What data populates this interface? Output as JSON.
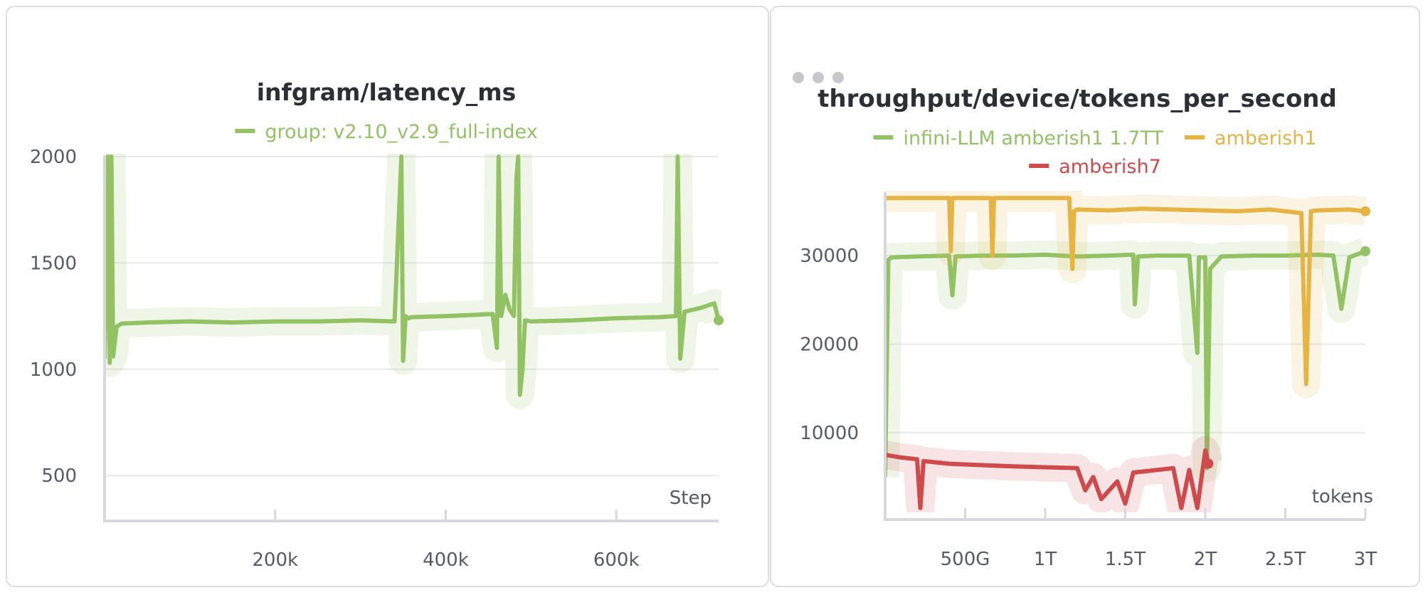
{
  "chart_data": [
    {
      "type": "line",
      "title": "infgram/latency_ms",
      "xlabel": "Step",
      "ylabel": "",
      "xlim": [
        0,
        720000
      ],
      "ylim": [
        320,
        2000
      ],
      "xticks": [
        200000,
        400000,
        600000
      ],
      "xtick_labels": [
        "200k",
        "400k",
        "600k"
      ],
      "yticks": [
        500,
        1000,
        1500,
        2000
      ],
      "ytick_labels": [
        "500",
        "1000",
        "1500",
        "2000"
      ],
      "grid": true,
      "legend_position": "top-center",
      "series": [
        {
          "name": "group: v2.10_v2.9_full-index",
          "color": "#92c264",
          "x": [
            0,
            4000,
            6000,
            8000,
            10000,
            14000,
            20000,
            50000,
            100000,
            150000,
            200000,
            250000,
            300000,
            340000,
            348000,
            350000,
            353000,
            356000,
            360000,
            400000,
            430000,
            455000,
            460000,
            462000,
            465000,
            470000,
            475000,
            480000,
            483000,
            485000,
            487000,
            490000,
            493000,
            500000,
            550000,
            600000,
            650000,
            670000,
            672000,
            675000,
            680000,
            700000,
            715000,
            720000
          ],
          "values": [
            1050,
            2000,
            1030,
            2000,
            1060,
            1200,
            1215,
            1220,
            1225,
            1220,
            1225,
            1225,
            1230,
            1225,
            2000,
            1040,
            1250,
            1240,
            1245,
            1250,
            1255,
            1260,
            1100,
            2000,
            1250,
            1350,
            1280,
            1250,
            1900,
            2000,
            880,
            1000,
            1230,
            1225,
            1230,
            1240,
            1245,
            1250,
            2000,
            1050,
            1270,
            1290,
            1310,
            1230
          ]
        }
      ]
    },
    {
      "type": "line",
      "title": "throughput/device/tokens_per_second",
      "xlabel": "tokens",
      "ylabel": "",
      "xlim": [
        0,
        3000000000000
      ],
      "ylim": [
        1000,
        37000
      ],
      "xticks": [
        500000000000,
        1000000000000,
        1500000000000,
        2000000000000,
        2500000000000,
        3000000000000
      ],
      "xtick_labels": [
        "500G",
        "1T",
        "1.5T",
        "2T",
        "2.5T",
        "3T"
      ],
      "yticks": [
        10000,
        20000,
        30000
      ],
      "ytick_labels": [
        "10000",
        "20000",
        "30000"
      ],
      "grid": true,
      "legend_position": "top-center",
      "series": [
        {
          "name": "infini-LLM amberish1 1.7TT",
          "color": "#92c264",
          "x": [
            0,
            20000000000,
            40000000000,
            200000000000,
            400000000000,
            420000000000,
            440000000000,
            600000000000,
            800000000000,
            1000000000000,
            1200000000000,
            1400000000000,
            1550000000000,
            1560000000000,
            1580000000000,
            1700000000000,
            1900000000000,
            1950000000000,
            1960000000000,
            2000000000000,
            2010000000000,
            2030000000000,
            2100000000000,
            2300000000000,
            2500000000000,
            2700000000000,
            2800000000000,
            2850000000000,
            2900000000000,
            3000000000000
          ],
          "values": [
            5000,
            29500,
            29800,
            29900,
            30000,
            25500,
            29900,
            30000,
            30000,
            30100,
            29900,
            30000,
            30100,
            24500,
            29900,
            30000,
            30000,
            19000,
            29800,
            29800,
            6000,
            28500,
            29900,
            30000,
            30000,
            30100,
            30000,
            24000,
            29800,
            30500
          ]
        },
        {
          "name": "amberish1",
          "color": "#e6b444",
          "x": [
            0,
            200000000000,
            400000000000,
            410000000000,
            420000000000,
            600000000000,
            660000000000,
            670000000000,
            680000000000,
            1000000000000,
            1150000000000,
            1170000000000,
            1180000000000,
            1200000000000,
            1400000000000,
            1600000000000,
            1800000000000,
            2000000000000,
            2200000000000,
            2400000000000,
            2500000000000,
            2600000000000,
            2630000000000,
            2660000000000,
            2700000000000,
            2900000000000,
            3000000000000
          ],
          "values": [
            36500,
            36500,
            36500,
            30500,
            36500,
            36500,
            36500,
            30000,
            36500,
            36500,
            36500,
            28500,
            35000,
            35200,
            35100,
            35300,
            35200,
            35100,
            35000,
            35200,
            35000,
            34800,
            15500,
            35000,
            35100,
            35200,
            35000
          ]
        },
        {
          "name": "amberish7",
          "color": "#cf4a4a",
          "x": [
            0,
            100000000000,
            200000000000,
            220000000000,
            240000000000,
            400000000000,
            800000000000,
            1200000000000,
            1250000000000,
            1300000000000,
            1350000000000,
            1450000000000,
            1500000000000,
            1550000000000,
            1800000000000,
            1850000000000,
            1900000000000,
            1950000000000,
            2000000000000,
            2020000000000
          ],
          "values": [
            7500,
            7200,
            7000,
            1500,
            6800,
            6500,
            6200,
            6000,
            3500,
            5000,
            2500,
            4500,
            2000,
            5500,
            6000,
            1500,
            5800,
            1500,
            8000,
            6500
          ]
        }
      ]
    }
  ]
}
